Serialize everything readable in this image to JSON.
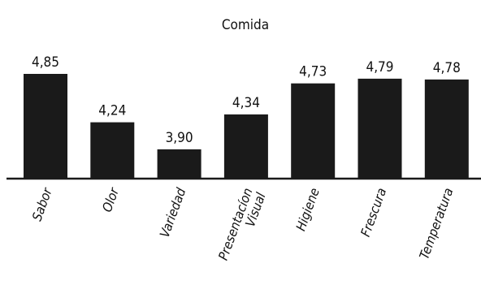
{
  "chart_data": {
    "type": "bar",
    "title": "Comida",
    "categories": [
      "Sabor",
      "Olor",
      "Variedad",
      "Presentacíon Visual",
      "Higiene",
      "Frescura",
      "Temperatura"
    ],
    "category_lines": [
      [
        "Sabor"
      ],
      [
        "Olor"
      ],
      [
        "Variedad"
      ],
      [
        "Presentacíon",
        "Visual"
      ],
      [
        "Higiene"
      ],
      [
        "Frescura"
      ],
      [
        "Temperatura"
      ]
    ],
    "values": [
      4.85,
      4.24,
      3.9,
      4.34,
      4.73,
      4.79,
      4.78
    ],
    "value_labels": [
      "4,85",
      "4,24",
      "3,90",
      "4,34",
      "4,73",
      "4,79",
      "4,78"
    ],
    "xlabel": "",
    "ylabel": "",
    "grid": false,
    "colors": {
      "bar": "#1a1a1a",
      "axis": "#1a1a1a",
      "text": "#111111"
    }
  }
}
